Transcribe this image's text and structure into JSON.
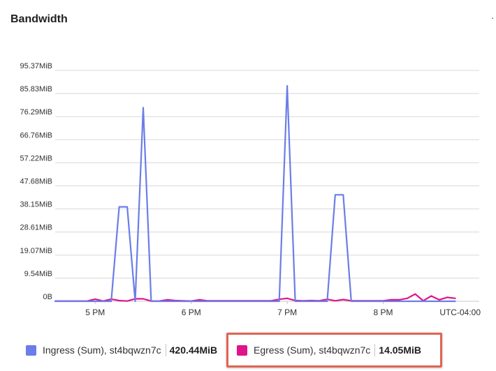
{
  "panel": {
    "title": "Bandwidth",
    "more_icon": "more-options-icon",
    "more_glyph": "·"
  },
  "timezone_label": "UTC-04:00",
  "colors": {
    "ingress": "#6b7de8",
    "egress": "#e0138a",
    "grid": "#d8d8d8",
    "highlight": "#e06452"
  },
  "legend": [
    {
      "label": "Ingress (Sum), st4bqwzn7c",
      "value": "420.44MiB",
      "color": "#6b7de8"
    },
    {
      "label": "Egress (Sum), st4bqwzn7c",
      "value": "14.05MiB",
      "color": "#e0138a"
    }
  ],
  "chart_data": {
    "type": "line",
    "y_ticks": [
      {
        "value": 0,
        "label": "0B"
      },
      {
        "value": 9.54,
        "label": "9.54MiB"
      },
      {
        "value": 19.07,
        "label": "19.07MiB"
      },
      {
        "value": 28.61,
        "label": "28.61MiB"
      },
      {
        "value": 38.15,
        "label": "38.15MiB"
      },
      {
        "value": 47.68,
        "label": "47.68MiB"
      },
      {
        "value": 57.22,
        "label": "57.22MiB"
      },
      {
        "value": 66.76,
        "label": "66.76MiB"
      },
      {
        "value": 76.29,
        "label": "76.29MiB"
      },
      {
        "value": 85.83,
        "label": "85.83MiB"
      },
      {
        "value": 95.37,
        "label": "95.37MiB"
      }
    ],
    "ylim": [
      0,
      95.37
    ],
    "x_ticks": [
      "5 PM",
      "6 PM",
      "7 PM",
      "8 PM"
    ],
    "xlim": [
      "4:35 PM",
      "9:00 PM"
    ],
    "grid": true,
    "legend_position": "bottom",
    "series": [
      {
        "name": "Ingress (Sum), st4bqwzn7c",
        "color": "#6b7de8",
        "x": [
          "4:35 PM",
          "4:40 PM",
          "4:45 PM",
          "4:50 PM",
          "4:55 PM",
          "5:00 PM",
          "5:05 PM",
          "5:10 PM",
          "5:15 PM",
          "5:20 PM",
          "5:25 PM",
          "5:30 PM",
          "5:35 PM",
          "5:40 PM",
          "5:45 PM",
          "5:50 PM",
          "5:55 PM",
          "6:00 PM",
          "6:05 PM",
          "6:10 PM",
          "6:15 PM",
          "6:20 PM",
          "6:25 PM",
          "6:30 PM",
          "6:35 PM",
          "6:40 PM",
          "6:45 PM",
          "6:50 PM",
          "6:55 PM",
          "7:00 PM",
          "7:05 PM",
          "7:10 PM",
          "7:15 PM",
          "7:20 PM",
          "7:25 PM",
          "7:30 PM",
          "7:35 PM",
          "7:40 PM",
          "7:45 PM",
          "7:50 PM",
          "7:55 PM",
          "8:00 PM",
          "8:05 PM",
          "8:10 PM",
          "8:15 PM",
          "8:20 PM",
          "8:25 PM",
          "8:30 PM",
          "8:35 PM",
          "8:40 PM",
          "8:45 PM"
        ],
        "values": [
          0,
          0,
          0,
          0,
          0,
          0,
          0,
          0,
          39,
          39,
          0,
          80,
          0,
          0,
          0,
          0,
          0,
          0,
          0,
          0,
          0,
          0,
          0,
          0,
          0,
          0,
          0,
          0,
          0,
          89,
          0,
          0,
          0,
          0,
          0,
          44,
          44,
          0,
          0,
          0,
          0,
          0,
          0,
          0,
          0,
          0,
          0,
          0,
          0,
          0,
          0
        ]
      },
      {
        "name": "Egress (Sum), st4bqwzn7c",
        "color": "#e0138a",
        "x": [
          "4:35 PM",
          "4:40 PM",
          "4:45 PM",
          "4:50 PM",
          "4:55 PM",
          "5:00 PM",
          "5:05 PM",
          "5:10 PM",
          "5:15 PM",
          "5:20 PM",
          "5:25 PM",
          "5:30 PM",
          "5:35 PM",
          "5:40 PM",
          "5:45 PM",
          "5:50 PM",
          "5:55 PM",
          "6:00 PM",
          "6:05 PM",
          "6:10 PM",
          "6:15 PM",
          "6:20 PM",
          "6:25 PM",
          "6:30 PM",
          "6:35 PM",
          "6:40 PM",
          "6:45 PM",
          "6:50 PM",
          "6:55 PM",
          "7:00 PM",
          "7:05 PM",
          "7:10 PM",
          "7:15 PM",
          "7:20 PM",
          "7:25 PM",
          "7:30 PM",
          "7:35 PM",
          "7:40 PM",
          "7:45 PM",
          "7:50 PM",
          "7:55 PM",
          "8:00 PM",
          "8:05 PM",
          "8:10 PM",
          "8:15 PM",
          "8:20 PM",
          "8:25 PM",
          "8:30 PM",
          "8:35 PM",
          "8:40 PM",
          "8:45 PM"
        ],
        "values": [
          0.1,
          0.1,
          0.1,
          0.1,
          0.1,
          0.9,
          0.1,
          0.9,
          0.3,
          0.1,
          1.0,
          1.0,
          0.1,
          0.1,
          0.6,
          0.3,
          0.2,
          0.1,
          0.6,
          0.2,
          0.2,
          0.2,
          0.2,
          0.2,
          0.2,
          0.2,
          0.2,
          0.2,
          0.8,
          1.2,
          0.3,
          0.2,
          0.3,
          0.2,
          0.8,
          0.2,
          0.7,
          0.2,
          0.2,
          0.2,
          0.2,
          0.2,
          0.6,
          0.6,
          1.2,
          3.0,
          0.2,
          2.2,
          0.6,
          1.6,
          1.2
        ]
      }
    ]
  }
}
